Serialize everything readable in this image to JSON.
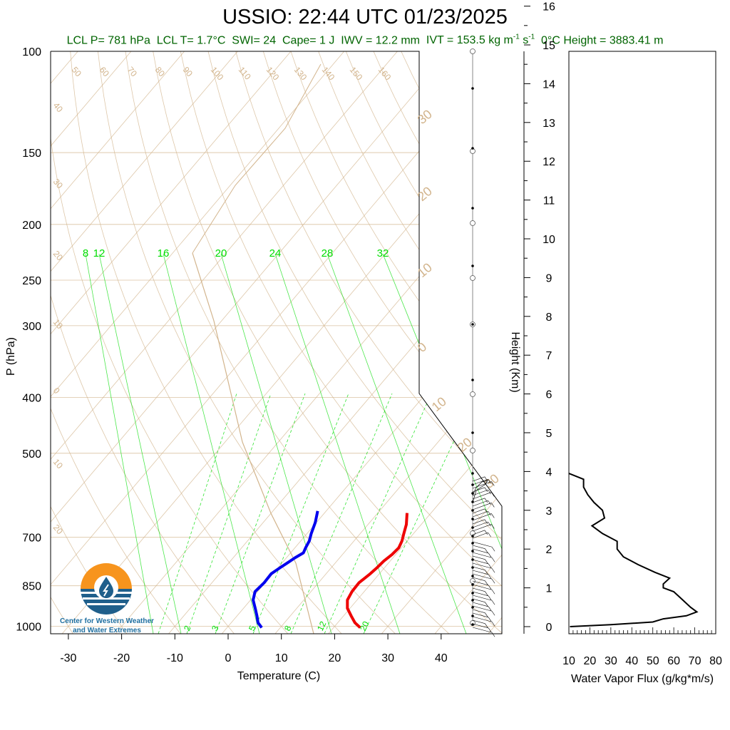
{
  "header": {
    "title": "USSIO: 22:44 UTC 01/23/2025",
    "stats": {
      "lcl_p": "LCL P= 781 hPa",
      "lcl_t": "LCL T= 1.7°C",
      "swi": "SWI= 24",
      "cape": "Cape= 1 J",
      "iwv": "IWV = 12.2 mm",
      "ivt_prefix": "IVT = 153.5 kg m",
      "ivt_exp1": "-1",
      "ivt_mid": " s",
      "ivt_exp2": "-1",
      "zero_height": "0°C Height = 3883.41 m"
    }
  },
  "logo": {
    "line1": "Center for Western Weather",
    "line2": "and Water Extremes"
  },
  "colors": {
    "temperature": "#0000ee",
    "dewpoint": "#ee0000",
    "dry_adiabat": "#d2b48c",
    "mixing_ratio": "#00dd00",
    "subtitle": "#006400",
    "logo_orange": "#f7941d",
    "logo_blue": "#1f5f8b",
    "logo_text": "#1f6fa0"
  },
  "chart_data": [
    {
      "type": "line",
      "name": "skew-t",
      "xlabel": "Temperature (C)",
      "ylabel": "P (hPa)",
      "ylabel_right": "Height (Km)",
      "x_ticks": [
        -30,
        -20,
        -10,
        0,
        10,
        20,
        30,
        40
      ],
      "p_ticks": [
        100,
        150,
        200,
        250,
        300,
        400,
        500,
        700,
        850,
        1000
      ],
      "height_ticks_km": [
        0,
        1,
        2,
        3,
        4,
        5,
        6,
        7,
        8,
        9,
        10,
        11,
        12,
        13,
        14,
        15,
        16
      ],
      "isotherm_labels": [
        "50",
        "60",
        "70",
        "80",
        "90",
        "100",
        "110",
        "120",
        "130",
        "140",
        "150",
        "160"
      ],
      "dry_adiabat_left_labels": [
        "40",
        "30",
        "20",
        "10",
        "0",
        "10",
        "20"
      ],
      "dry_adiabat_right_labels": [
        "30",
        "20",
        "10",
        "0",
        "10",
        "20",
        "30"
      ],
      "mixing_ratio_top_labels": [
        "8",
        "12",
        "16",
        "20",
        "24",
        "28",
        "32"
      ],
      "mixing_ratio_bottom_labels": [
        "2",
        "3",
        "5",
        "8",
        "12",
        "20"
      ],
      "series": [
        {
          "name": "Temperature",
          "points": [
            {
              "p": 1005,
              "t": 6.5
            },
            {
              "p": 985,
              "t": 5.0
            },
            {
              "p": 960,
              "t": 3.8
            },
            {
              "p": 930,
              "t": 2.2
            },
            {
              "p": 900,
              "t": 0.5
            },
            {
              "p": 870,
              "t": -0.5
            },
            {
              "p": 840,
              "t": -0.2
            },
            {
              "p": 810,
              "t": -0.3
            },
            {
              "p": 790,
              "t": 0.4
            },
            {
              "p": 775,
              "t": 1.0
            },
            {
              "p": 760,
              "t": 1.6
            },
            {
              "p": 745,
              "t": 2.4
            },
            {
              "p": 730,
              "t": 2.0
            },
            {
              "p": 710,
              "t": 1.6
            },
            {
              "p": 690,
              "t": 0.8
            },
            {
              "p": 660,
              "t": -0.2
            },
            {
              "p": 630,
              "t": -1.6
            }
          ]
        },
        {
          "name": "Dewpoint",
          "points": [
            {
              "p": 1005,
              "t": 25.0
            },
            {
              "p": 985,
              "t": 23.2
            },
            {
              "p": 960,
              "t": 21.5
            },
            {
              "p": 930,
              "t": 19.5
            },
            {
              "p": 900,
              "t": 18.2
            },
            {
              "p": 870,
              "t": 17.7
            },
            {
              "p": 840,
              "t": 17.6
            },
            {
              "p": 810,
              "t": 18.3
            },
            {
              "p": 790,
              "t": 18.6
            },
            {
              "p": 770,
              "t": 18.8
            },
            {
              "p": 750,
              "t": 19.3
            },
            {
              "p": 730,
              "t": 19.5
            },
            {
              "p": 710,
              "t": 19.0
            },
            {
              "p": 690,
              "t": 18.2
            },
            {
              "p": 665,
              "t": 17.2
            },
            {
              "p": 635,
              "t": 15.5
            }
          ]
        }
      ]
    },
    {
      "type": "line",
      "name": "water-vapor-flux",
      "xlabel": "Water Vapor Flux (g/kg*m/s)",
      "xlim": [
        10,
        80
      ],
      "x_ticks": [
        10,
        20,
        30,
        40,
        50,
        60,
        70,
        80
      ],
      "series": [
        {
          "name": "Flux",
          "points": [
            {
              "h": 0.0,
              "v": 10.5
            },
            {
              "h": 0.05,
              "v": 30
            },
            {
              "h": 0.12,
              "v": 50
            },
            {
              "h": 0.2,
              "v": 55
            },
            {
              "h": 0.28,
              "v": 66
            },
            {
              "h": 0.38,
              "v": 71
            },
            {
              "h": 0.5,
              "v": 68
            },
            {
              "h": 0.7,
              "v": 64
            },
            {
              "h": 0.9,
              "v": 60
            },
            {
              "h": 1.0,
              "v": 55
            },
            {
              "h": 1.1,
              "v": 55
            },
            {
              "h": 1.25,
              "v": 58
            },
            {
              "h": 1.4,
              "v": 51
            },
            {
              "h": 1.6,
              "v": 43
            },
            {
              "h": 1.8,
              "v": 36
            },
            {
              "h": 2.0,
              "v": 33
            },
            {
              "h": 2.2,
              "v": 33
            },
            {
              "h": 2.4,
              "v": 26
            },
            {
              "h": 2.6,
              "v": 21
            },
            {
              "h": 2.8,
              "v": 27
            },
            {
              "h": 3.0,
              "v": 26
            },
            {
              "h": 3.2,
              "v": 22
            },
            {
              "h": 3.4,
              "v": 19
            },
            {
              "h": 3.6,
              "v": 17
            },
            {
              "h": 3.8,
              "v": 17
            },
            {
              "h": 3.95,
              "v": 10
            }
          ]
        }
      ]
    }
  ]
}
